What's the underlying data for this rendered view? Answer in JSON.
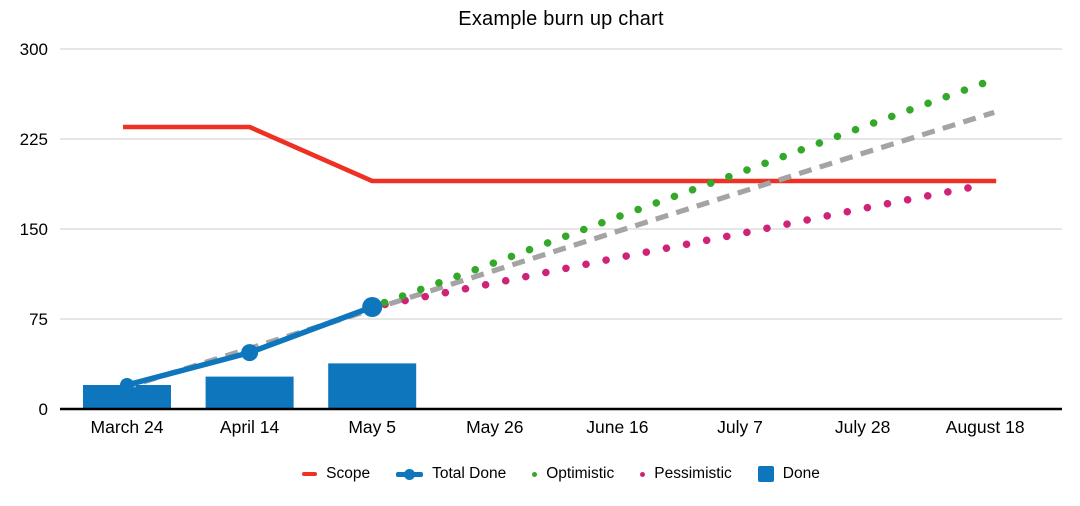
{
  "title": "Example burn up chart",
  "colors": {
    "scope": "#ee3123",
    "total_done": "#0e76bc",
    "optimistic": "#34a82b",
    "pessimistic": "#d02377",
    "done_bar": "#0e76bc",
    "trend": "#a4a4a4",
    "gridline": "#d8d8d8",
    "axis": "#000000",
    "text": "#000000"
  },
  "chart_data": {
    "type": "combo",
    "title": "Example burn up chart",
    "categories": [
      "March 24",
      "April 14",
      "May 5",
      "May 26",
      "June 16",
      "July 7",
      "July 28",
      "August 18"
    ],
    "xlabel": "",
    "ylabel": "",
    "y_ticks": [
      0,
      75,
      150,
      225,
      300
    ],
    "ylim": [
      0,
      300
    ],
    "grid": "horizontal",
    "legend_position": "bottom-center",
    "series": [
      {
        "name": "Scope",
        "type": "line",
        "color": "#ee3123",
        "in_legend": true,
        "values": [
          235,
          235,
          190,
          190,
          190,
          190,
          190,
          190
        ]
      },
      {
        "name": "Total Done",
        "type": "line-markers",
        "color": "#0e76bc",
        "in_legend": true,
        "values": [
          20,
          47,
          85,
          null,
          null,
          null,
          null,
          null
        ]
      },
      {
        "name": "Optimistic",
        "type": "dotted-line",
        "color": "#34a82b",
        "in_legend": true,
        "values": [
          null,
          null,
          85,
          122,
          160,
          197,
          235,
          272
        ]
      },
      {
        "name": "Pessimistic",
        "type": "dotted-line",
        "color": "#d02377",
        "in_legend": true,
        "values": [
          null,
          null,
          85,
          105,
          126,
          146,
          167,
          187
        ]
      },
      {
        "name": "Done",
        "type": "bar",
        "color": "#0e76bc",
        "in_legend": true,
        "values": [
          20,
          27,
          38,
          null,
          null,
          null,
          null,
          null
        ]
      },
      {
        "name": "Trend",
        "type": "dashed-line",
        "color": "#a4a4a4",
        "in_legend": false,
        "values": [
          18,
          50.5,
          83,
          115.5,
          148,
          180.5,
          213,
          245.5
        ]
      }
    ],
    "legend": [
      {
        "label": "Scope",
        "swatch": "line",
        "color": "#ee3123"
      },
      {
        "label": "Total Done",
        "swatch": "line-dot",
        "color": "#0e76bc"
      },
      {
        "label": "Optimistic",
        "swatch": "dot",
        "color": "#34a82b"
      },
      {
        "label": "Pessimistic",
        "swatch": "dot",
        "color": "#d02377"
      },
      {
        "label": "Done",
        "swatch": "square",
        "color": "#0e76bc"
      }
    ]
  }
}
